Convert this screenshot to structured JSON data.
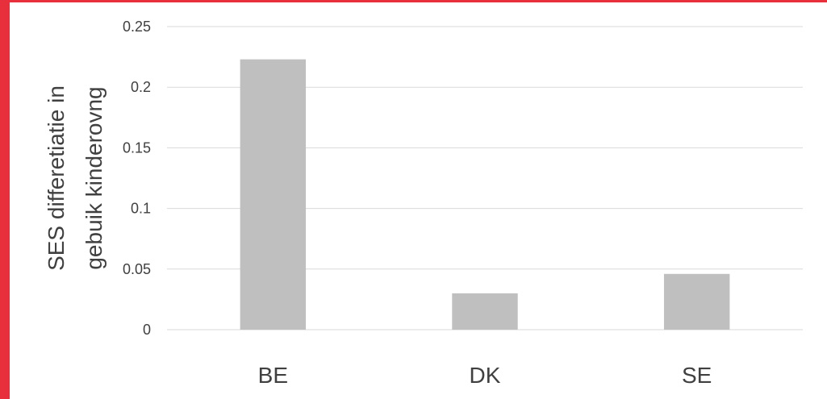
{
  "frame": {
    "accent_color": "#e8303c"
  },
  "chart_data": {
    "type": "bar",
    "categories": [
      "BE",
      "DK",
      "SE"
    ],
    "values": [
      0.223,
      0.03,
      0.046
    ],
    "ylabel_lines": [
      "SES differetiatie in",
      "gebuik kinderovng"
    ],
    "ylim": [
      0,
      0.25
    ],
    "yticks": [
      "0",
      "0.05",
      "0.1",
      "0.15",
      "0.2",
      "0.25"
    ],
    "ytick_values": [
      0,
      0.05,
      0.1,
      0.15,
      0.2,
      0.25
    ],
    "grid": true,
    "legend": "none",
    "bar_color": "#bfbfbf",
    "grid_color": "#d9d9d9"
  }
}
